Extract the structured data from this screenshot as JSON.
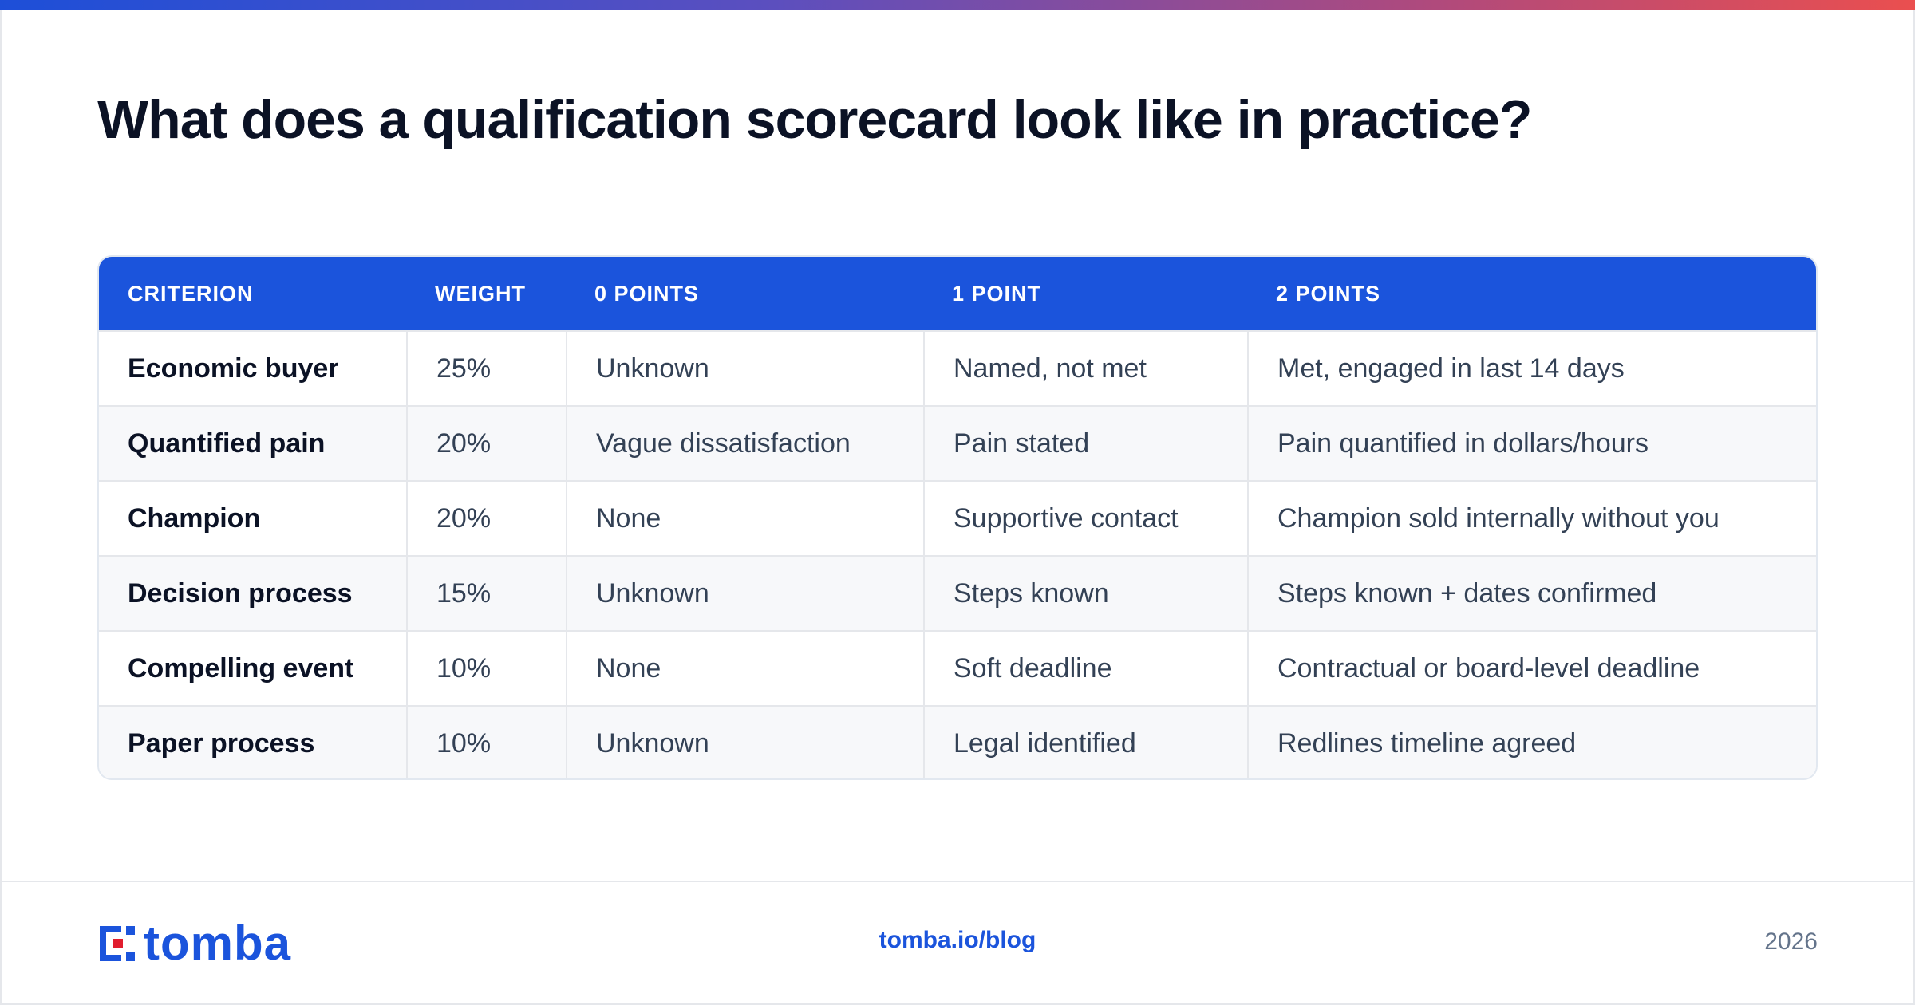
{
  "title": "What does a qualification scorecard look like in practice?",
  "table": {
    "headers": [
      "CRITERION",
      "WEIGHT",
      "0 POINTS",
      "1 POINT",
      "2 POINTS"
    ],
    "rows": [
      [
        "Economic buyer",
        "25%",
        "Unknown",
        "Named, not met",
        "Met, engaged in last 14 days"
      ],
      [
        "Quantified pain",
        "20%",
        "Vague dissatisfaction",
        "Pain stated",
        "Pain quantified in dollars/hours"
      ],
      [
        "Champion",
        "20%",
        "None",
        "Supportive contact",
        "Champion sold internally without you"
      ],
      [
        "Decision process",
        "15%",
        "Unknown",
        "Steps known",
        "Steps known + dates confirmed"
      ],
      [
        "Compelling event",
        "10%",
        "None",
        "Soft deadline",
        "Contractual or board-level deadline"
      ],
      [
        "Paper process",
        "10%",
        "Unknown",
        "Legal identified",
        "Redlines timeline agreed"
      ]
    ]
  },
  "footer": {
    "logo_text": "tomba",
    "url": "tomba.io/blog",
    "year": "2026"
  },
  "colors": {
    "accent": "#1b54dc",
    "logo_red": "#e11d2e"
  },
  "icons": {
    "logo_mark": "tomba-logo-icon"
  }
}
